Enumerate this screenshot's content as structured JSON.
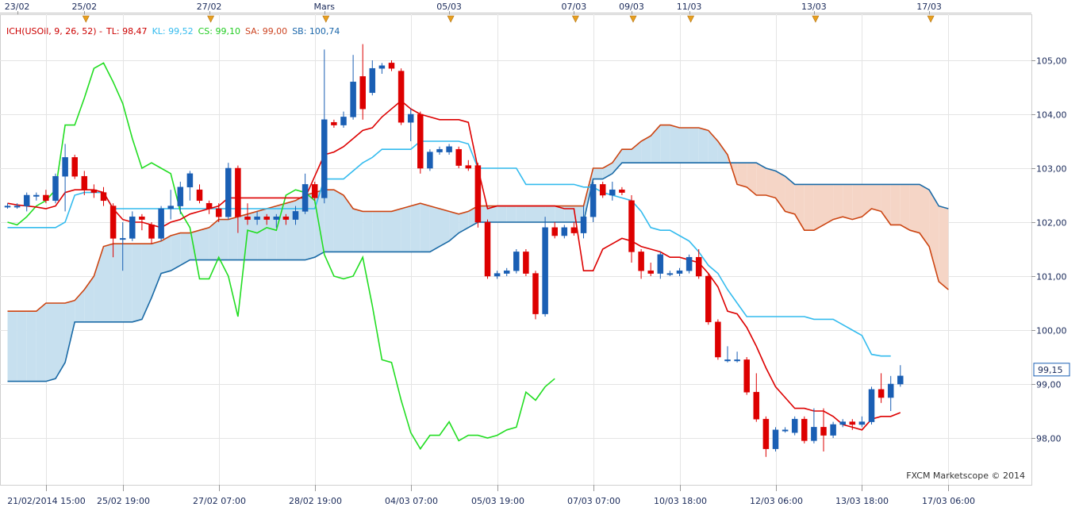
{
  "chart_data": {
    "type": "candlestick",
    "legend": [
      {
        "key": "ich",
        "text": "ICH(USOil, 9, 26, 52) -",
        "color": "#cc0000"
      },
      {
        "key": "tl",
        "text": "TL: 98,47",
        "color": "#cc0000"
      },
      {
        "key": "kl",
        "text": "KL: 99,52",
        "color": "#33bbee"
      },
      {
        "key": "cs",
        "text": "CS: 99,10",
        "color": "#22cc22"
      },
      {
        "key": "sa",
        "text": "SA: 99,00",
        "color": "#cc4422"
      },
      {
        "key": "sb",
        "text": "SB: 100,74",
        "color": "#1a66aa"
      }
    ],
    "ylim": [
      97.4,
      105.6
    ],
    "y_ticks": [
      "98,00",
      "99,00",
      "100,00",
      "101,00",
      "102,00",
      "103,00",
      "104,00",
      "105,00"
    ],
    "y_tick_values": [
      98,
      99,
      100,
      101,
      102,
      103,
      104,
      105
    ],
    "last_price": "99,15",
    "last_price_value": 99.15,
    "top_dates": [
      {
        "label": "23/02",
        "bar": 1
      },
      {
        "label": "25/02",
        "bar": 8
      },
      {
        "label": "27/02",
        "bar": 21
      },
      {
        "label": "Mars",
        "bar": 33
      },
      {
        "label": "05/03",
        "bar": 46
      },
      {
        "label": "07/03",
        "bar": 59
      },
      {
        "label": "09/03",
        "bar": 65
      },
      {
        "label": "11/03",
        "bar": 71
      },
      {
        "label": "13/03",
        "bar": 84
      },
      {
        "label": "17/03",
        "bar": 96
      }
    ],
    "event_marker_bars": [
      8,
      21,
      33,
      46,
      59,
      65,
      71,
      84,
      96
    ],
    "bottom_labels": [
      {
        "label": "21/02/2014 15:00",
        "bar": 4
      },
      {
        "label": "25/02 19:00",
        "bar": 12
      },
      {
        "label": "27/02 07:00",
        "bar": 22
      },
      {
        "label": "28/02 19:00",
        "bar": 32
      },
      {
        "label": "04/03 07:00",
        "bar": 42
      },
      {
        "label": "05/03 19:00",
        "bar": 51
      },
      {
        "label": "07/03 07:00",
        "bar": 61
      },
      {
        "label": "10/03 18:00",
        "bar": 70
      },
      {
        "label": "12/03 06:00",
        "bar": 80
      },
      {
        "label": "13/03 18:00",
        "bar": 89
      },
      {
        "label": "17/03 06:00",
        "bar": 98
      }
    ],
    "candles": [
      [
        102.3,
        102.35,
        102.25,
        102.3
      ],
      [
        102.3,
        102.35,
        102.25,
        102.3
      ],
      [
        102.3,
        102.55,
        102.2,
        102.5
      ],
      [
        102.5,
        102.55,
        102.4,
        102.5
      ],
      [
        102.5,
        102.6,
        102.35,
        102.4
      ],
      [
        102.4,
        102.9,
        102.35,
        102.85
      ],
      [
        102.85,
        103.45,
        102.2,
        103.2
      ],
      [
        103.2,
        103.25,
        102.8,
        102.85
      ],
      [
        102.85,
        102.95,
        102.5,
        102.6
      ],
      [
        102.6,
        102.7,
        102.45,
        102.55
      ],
      [
        102.55,
        102.65,
        102.3,
        102.4
      ],
      [
        102.3,
        102.35,
        101.35,
        101.7
      ],
      [
        101.7,
        102.0,
        101.1,
        101.7
      ],
      [
        101.7,
        102.2,
        101.65,
        102.1
      ],
      [
        102.1,
        102.15,
        101.85,
        102.05
      ],
      [
        101.95,
        102.0,
        101.6,
        101.7
      ],
      [
        101.7,
        102.3,
        101.65,
        102.25
      ],
      [
        102.25,
        102.6,
        102.05,
        102.3
      ],
      [
        102.3,
        102.75,
        102.15,
        102.65
      ],
      [
        102.65,
        102.95,
        102.4,
        102.9
      ],
      [
        102.6,
        102.7,
        102.35,
        102.4
      ],
      [
        102.35,
        102.4,
        102.15,
        102.25
      ],
      [
        102.25,
        102.35,
        102.0,
        102.1
      ],
      [
        102.1,
        103.1,
        102.05,
        103.0
      ],
      [
        103.0,
        103.05,
        101.8,
        102.1
      ],
      [
        102.1,
        102.35,
        101.95,
        102.05
      ],
      [
        102.05,
        102.2,
        101.95,
        102.1
      ],
      [
        102.1,
        102.15,
        101.95,
        102.05
      ],
      [
        102.05,
        102.15,
        101.9,
        102.1
      ],
      [
        102.1,
        102.15,
        101.95,
        102.05
      ],
      [
        102.05,
        102.3,
        101.95,
        102.2
      ],
      [
        102.2,
        102.9,
        102.15,
        102.7
      ],
      [
        102.7,
        102.75,
        102.4,
        102.45
      ],
      [
        102.45,
        105.2,
        102.35,
        103.9
      ],
      [
        103.85,
        103.9,
        103.75,
        103.8
      ],
      [
        103.8,
        104.05,
        103.75,
        103.95
      ],
      [
        103.95,
        105.1,
        103.9,
        104.6
      ],
      [
        104.7,
        105.3,
        103.9,
        104.1
      ],
      [
        104.4,
        105.0,
        104.35,
        104.85
      ],
      [
        104.85,
        104.95,
        104.75,
        104.9
      ],
      [
        104.95,
        105.0,
        104.8,
        104.85
      ],
      [
        104.8,
        104.85,
        103.8,
        103.85
      ],
      [
        103.85,
        104.1,
        103.5,
        104.0
      ],
      [
        104.0,
        104.05,
        102.9,
        103.0
      ],
      [
        103.0,
        103.35,
        102.95,
        103.3
      ],
      [
        103.3,
        103.4,
        103.25,
        103.35
      ],
      [
        103.3,
        103.45,
        103.25,
        103.4
      ],
      [
        103.35,
        103.4,
        103.0,
        103.05
      ],
      [
        103.05,
        103.15,
        102.95,
        103.0
      ],
      [
        103.05,
        103.1,
        101.9,
        102.0
      ],
      [
        102.0,
        102.05,
        100.95,
        101.0
      ],
      [
        101.0,
        101.1,
        100.95,
        101.05
      ],
      [
        101.05,
        101.15,
        101.0,
        101.1
      ],
      [
        101.1,
        101.5,
        101.05,
        101.45
      ],
      [
        101.45,
        101.5,
        101.0,
        101.05
      ],
      [
        101.05,
        101.1,
        100.2,
        100.3
      ],
      [
        100.3,
        102.1,
        100.25,
        101.9
      ],
      [
        101.9,
        102.0,
        101.7,
        101.75
      ],
      [
        101.75,
        101.95,
        101.7,
        101.9
      ],
      [
        101.9,
        102.0,
        101.75,
        101.8
      ],
      [
        101.8,
        102.3,
        101.7,
        102.1
      ],
      [
        102.1,
        102.75,
        102.0,
        102.7
      ],
      [
        102.7,
        102.75,
        102.45,
        102.5
      ],
      [
        102.5,
        102.75,
        102.4,
        102.6
      ],
      [
        102.6,
        102.65,
        102.5,
        102.55
      ],
      [
        102.4,
        102.5,
        101.25,
        101.45
      ],
      [
        101.45,
        101.5,
        100.95,
        101.1
      ],
      [
        101.1,
        101.25,
        101.0,
        101.05
      ],
      [
        101.05,
        101.45,
        100.95,
        101.4
      ],
      [
        101.05,
        101.1,
        101.0,
        101.05
      ],
      [
        101.05,
        101.15,
        101.0,
        101.1
      ],
      [
        101.1,
        101.4,
        101.05,
        101.35
      ],
      [
        101.35,
        101.5,
        100.95,
        101.0
      ],
      [
        101.0,
        101.05,
        100.1,
        100.15
      ],
      [
        100.15,
        100.2,
        99.45,
        99.5
      ],
      [
        99.45,
        99.7,
        99.4,
        99.45
      ],
      [
        99.45,
        99.6,
        99.4,
        99.45
      ],
      [
        99.45,
        99.5,
        98.8,
        98.85
      ],
      [
        98.85,
        99.2,
        98.3,
        98.35
      ],
      [
        98.35,
        98.4,
        97.65,
        97.8
      ],
      [
        97.8,
        98.2,
        97.75,
        98.15
      ],
      [
        98.15,
        98.2,
        98.1,
        98.15
      ],
      [
        98.1,
        98.4,
        98.05,
        98.35
      ],
      [
        98.35,
        98.4,
        97.9,
        97.95
      ],
      [
        97.95,
        98.55,
        97.9,
        98.2
      ],
      [
        98.2,
        98.55,
        97.75,
        98.05
      ],
      [
        98.05,
        98.3,
        98.0,
        98.25
      ],
      [
        98.25,
        98.35,
        98.2,
        98.3
      ],
      [
        98.3,
        98.35,
        98.15,
        98.25
      ],
      [
        98.25,
        98.4,
        98.2,
        98.3
      ],
      [
        98.3,
        98.95,
        98.25,
        98.9
      ],
      [
        98.9,
        99.2,
        98.65,
        98.75
      ],
      [
        98.75,
        99.15,
        98.5,
        99.0
      ],
      [
        99.0,
        99.35,
        98.95,
        99.15
      ]
    ],
    "tenkan": [
      102.35,
      102.32,
      102.3,
      102.28,
      102.25,
      102.3,
      102.55,
      102.6,
      102.6,
      102.6,
      102.55,
      102.25,
      102.05,
      102.0,
      102.0,
      101.95,
      101.9,
      102.0,
      102.05,
      102.15,
      102.2,
      102.25,
      102.3,
      102.45,
      102.45,
      102.45,
      102.45,
      102.45,
      102.45,
      102.45,
      102.45,
      102.45,
      102.85,
      103.25,
      103.3,
      103.4,
      103.55,
      103.7,
      103.75,
      103.95,
      104.1,
      104.25,
      104.1,
      104.0,
      103.95,
      103.9,
      103.9,
      103.9,
      103.85,
      103.0,
      102.25,
      102.3,
      102.3,
      102.3,
      102.3,
      102.3,
      102.3,
      102.3,
      102.25,
      102.25,
      101.1,
      101.1,
      101.5,
      101.6,
      101.7,
      101.65,
      101.55,
      101.5,
      101.45,
      101.35,
      101.35,
      101.3,
      101.25,
      101.05,
      100.8,
      100.35,
      100.3,
      100.05,
      99.7,
      99.3,
      98.95,
      98.75,
      98.55,
      98.55,
      98.5,
      98.5,
      98.4,
      98.25,
      98.2,
      98.15,
      98.35,
      98.4,
      98.4,
      98.47
    ],
    "kijun": [
      101.9,
      101.9,
      101.9,
      101.9,
      101.9,
      101.9,
      102.0,
      102.5,
      102.55,
      102.55,
      102.55,
      102.25,
      102.25,
      102.25,
      102.25,
      102.25,
      102.25,
      102.25,
      102.25,
      102.25,
      102.25,
      102.25,
      102.25,
      102.25,
      102.25,
      102.25,
      102.25,
      102.25,
      102.25,
      102.25,
      102.25,
      102.25,
      102.25,
      102.8,
      102.8,
      102.8,
      102.95,
      103.1,
      103.2,
      103.35,
      103.35,
      103.35,
      103.35,
      103.5,
      103.5,
      103.5,
      103.5,
      103.5,
      103.45,
      103.0,
      103.0,
      103.0,
      103.0,
      103.0,
      102.7,
      102.7,
      102.7,
      102.7,
      102.7,
      102.7,
      102.65,
      102.65,
      102.55,
      102.5,
      102.45,
      102.4,
      102.2,
      101.9,
      101.85,
      101.85,
      101.75,
      101.65,
      101.45,
      101.2,
      101.05,
      100.75,
      100.5,
      100.25,
      100.25,
      100.25,
      100.25,
      100.25,
      100.25,
      100.25,
      100.2,
      100.2,
      100.2,
      100.1,
      100.0,
      99.9,
      99.55,
      99.52,
      99.52
    ],
    "chikou": [
      102.0,
      101.95,
      102.1,
      102.3,
      102.4,
      102.6,
      103.8,
      103.8,
      104.3,
      104.85,
      104.95,
      104.6,
      104.2,
      103.55,
      103.0,
      103.1,
      103.0,
      102.9,
      102.2,
      101.9,
      100.95,
      100.95,
      101.35,
      101.0,
      100.25,
      101.85,
      101.8,
      101.9,
      101.85,
      102.5,
      102.6,
      102.55,
      102.4,
      101.4,
      101.0,
      100.95,
      101.0,
      101.35,
      100.45,
      99.45,
      99.4,
      98.7,
      98.1,
      97.8,
      98.05,
      98.05,
      98.3,
      97.95,
      98.05,
      98.05,
      98.0,
      98.05,
      98.15,
      98.2,
      98.85,
      98.7,
      98.95,
      99.1
    ],
    "senkou_a": [
      100.35,
      100.35,
      100.35,
      100.35,
      100.5,
      100.5,
      100.5,
      100.55,
      100.75,
      101.0,
      101.55,
      101.6,
      101.6,
      101.6,
      101.6,
      101.6,
      101.65,
      101.75,
      101.8,
      101.8,
      101.85,
      101.9,
      102.05,
      102.05,
      102.1,
      102.15,
      102.2,
      102.25,
      102.3,
      102.35,
      102.4,
      102.5,
      102.55,
      102.6,
      102.6,
      102.5,
      102.25,
      102.2,
      102.2,
      102.2,
      102.2,
      102.25,
      102.3,
      102.35,
      102.3,
      102.25,
      102.2,
      102.15,
      102.2,
      102.3,
      102.3,
      102.3,
      102.3,
      102.3,
      102.3,
      102.3,
      102.3,
      102.3,
      102.3,
      102.3,
      102.3,
      103.0,
      103.0,
      103.1,
      103.35,
      103.35,
      103.5,
      103.6,
      103.8,
      103.8,
      103.75,
      103.75,
      103.75,
      103.7,
      103.5,
      103.25,
      102.7,
      102.65,
      102.5,
      102.5,
      102.45,
      102.2,
      102.15,
      101.85,
      101.85,
      101.95,
      102.05,
      102.1,
      102.05,
      102.1,
      102.25,
      102.2,
      101.95,
      101.95,
      101.85,
      101.8,
      101.55,
      100.9,
      100.75
    ],
    "senkou_b": [
      99.05,
      99.05,
      99.05,
      99.05,
      99.05,
      99.1,
      99.4,
      100.15,
      100.15,
      100.15,
      100.15,
      100.15,
      100.15,
      100.15,
      100.2,
      100.6,
      101.05,
      101.1,
      101.2,
      101.3,
      101.3,
      101.3,
      101.3,
      101.3,
      101.3,
      101.3,
      101.3,
      101.3,
      101.3,
      101.3,
      101.3,
      101.3,
      101.35,
      101.45,
      101.45,
      101.45,
      101.45,
      101.45,
      101.45,
      101.45,
      101.45,
      101.45,
      101.45,
      101.45,
      101.45,
      101.55,
      101.65,
      101.8,
      101.9,
      102.0,
      102.0,
      102.0,
      102.0,
      102.0,
      102.0,
      102.0,
      102.0,
      102.0,
      102.0,
      102.0,
      102.0,
      102.8,
      102.8,
      102.9,
      103.1,
      103.1,
      103.1,
      103.1,
      103.1,
      103.1,
      103.1,
      103.1,
      103.1,
      103.1,
      103.1,
      103.1,
      103.1,
      103.1,
      103.1,
      103.0,
      102.95,
      102.85,
      102.7,
      102.7,
      102.7,
      102.7,
      102.7,
      102.7,
      102.7,
      102.7,
      102.7,
      102.7,
      102.7,
      102.7,
      102.7,
      102.7,
      102.6,
      102.3,
      102.25
    ],
    "colors": {
      "up_candle": "#1a5fb4",
      "down_candle": "#dd0000",
      "tenkan": "#dd0000",
      "kijun": "#33bbee",
      "chikou": "#22dd22",
      "senkou_a": "#cc4411",
      "senkou_b": "#1a6aa6",
      "cloud_bull": "#c7e0ef",
      "cloud_bear": "#f5d5c6",
      "grid": "#e4e4e4",
      "axis_text": "#1a2a5a",
      "event_marker": "#e8a020"
    },
    "grid": true
  },
  "copyright": "FXCM Marketscope © 2014"
}
